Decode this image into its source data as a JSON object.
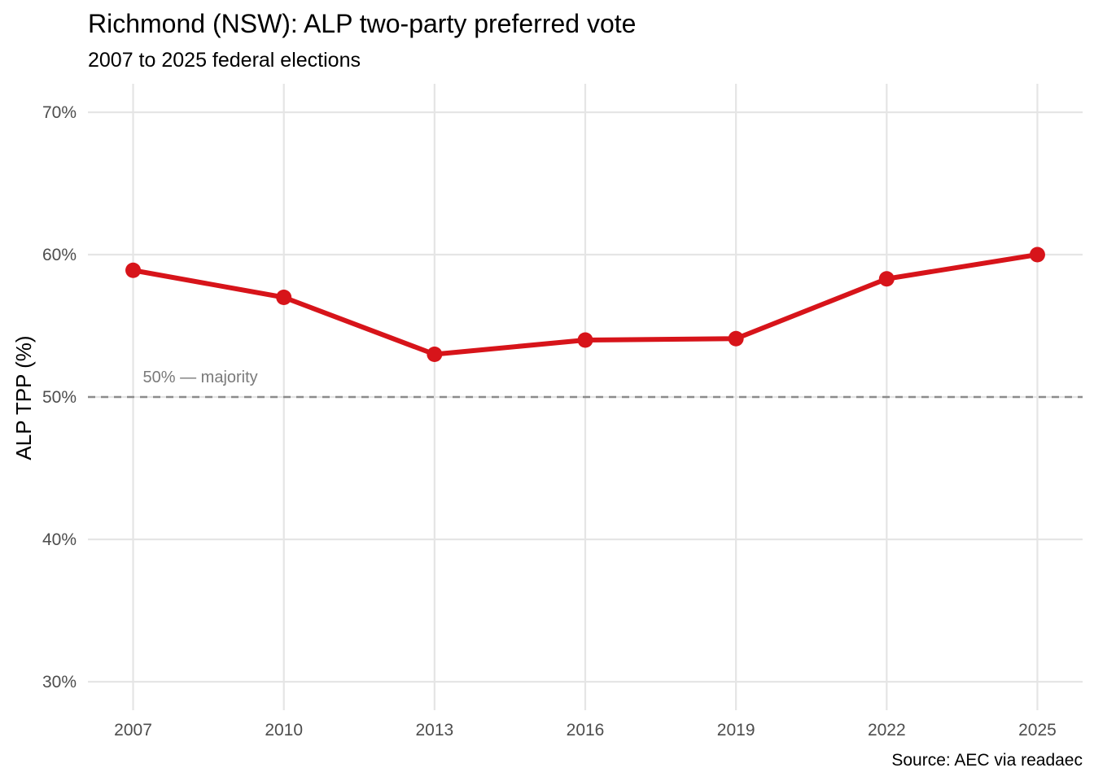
{
  "chart_data": {
    "type": "line",
    "title": "Richmond (NSW): ALP two-party preferred vote",
    "subtitle": "2007 to 2025 federal elections",
    "xlabel": "",
    "ylabel": "ALP TPP (%)",
    "caption": "Source: AEC via readaec",
    "x": [
      2007,
      2010,
      2013,
      2016,
      2019,
      2022,
      2025
    ],
    "series": [
      {
        "values": [
          58.9,
          57.0,
          53.0,
          54.0,
          54.1,
          58.3,
          60.0
        ]
      }
    ],
    "ylim": [
      28,
      72
    ],
    "xlim": [
      2006.1,
      2025.9
    ],
    "yticks": [
      30,
      40,
      50,
      60,
      70
    ],
    "ytick_labels": [
      "30%",
      "40%",
      "50%",
      "60%",
      "70%"
    ],
    "xticks": [
      2007,
      2010,
      2013,
      2016,
      2019,
      2022,
      2025
    ],
    "xtick_labels": [
      "2007",
      "2010",
      "2013",
      "2016",
      "2019",
      "2022",
      "2025"
    ],
    "reference_line": {
      "y": 50,
      "style": "dashed",
      "label": "50% — majority"
    },
    "grid": true,
    "legend": "none",
    "colors": {
      "line": "#d7141a",
      "reference": "#8c8c8c",
      "grid": "#e5e5e5"
    }
  }
}
